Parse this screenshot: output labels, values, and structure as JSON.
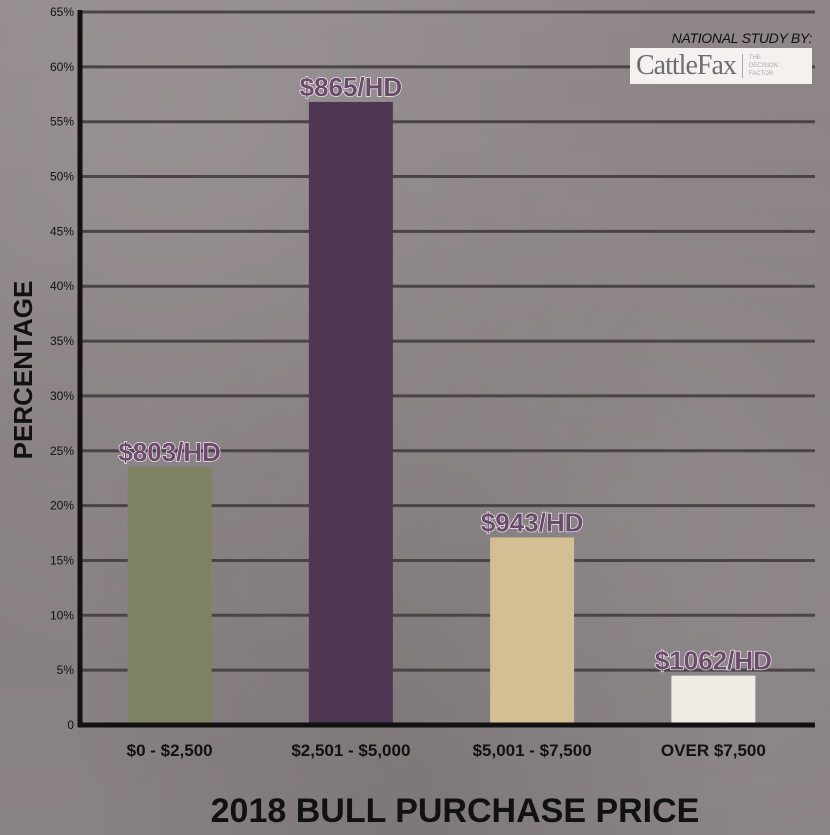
{
  "credit": {
    "text": "NATIONAL STUDY BY:",
    "logo_name": "CattleFax",
    "logo_tagline": "THE DECISION FACTOR"
  },
  "chart_data": {
    "type": "bar",
    "title": "",
    "xlabel": "2018 BULL PURCHASE PRICE",
    "ylabel": "PERCENTAGE",
    "ylim": [
      0,
      65
    ],
    "yticks": [
      0,
      5,
      10,
      15,
      20,
      25,
      30,
      35,
      40,
      45,
      50,
      55,
      60,
      65
    ],
    "ytick_labels": [
      "0",
      "5%",
      "10%",
      "15%",
      "20%",
      "25%",
      "30%",
      "35%",
      "40%",
      "45%",
      "50%",
      "55%",
      "60%",
      "65%"
    ],
    "grid": true,
    "categories": [
      "$0 - $2,500",
      "$2,501 - $5,000",
      "$5,001 - $7,500",
      "OVER $7,500"
    ],
    "values": [
      23.5,
      56.8,
      17.1,
      4.5
    ],
    "bar_labels": [
      "$803/HD",
      "$865/HD",
      "$943/HD",
      "$1062/HD"
    ],
    "colors": [
      "#7f8262",
      "#4f3652",
      "#d3bf93",
      "#efece6"
    ]
  }
}
